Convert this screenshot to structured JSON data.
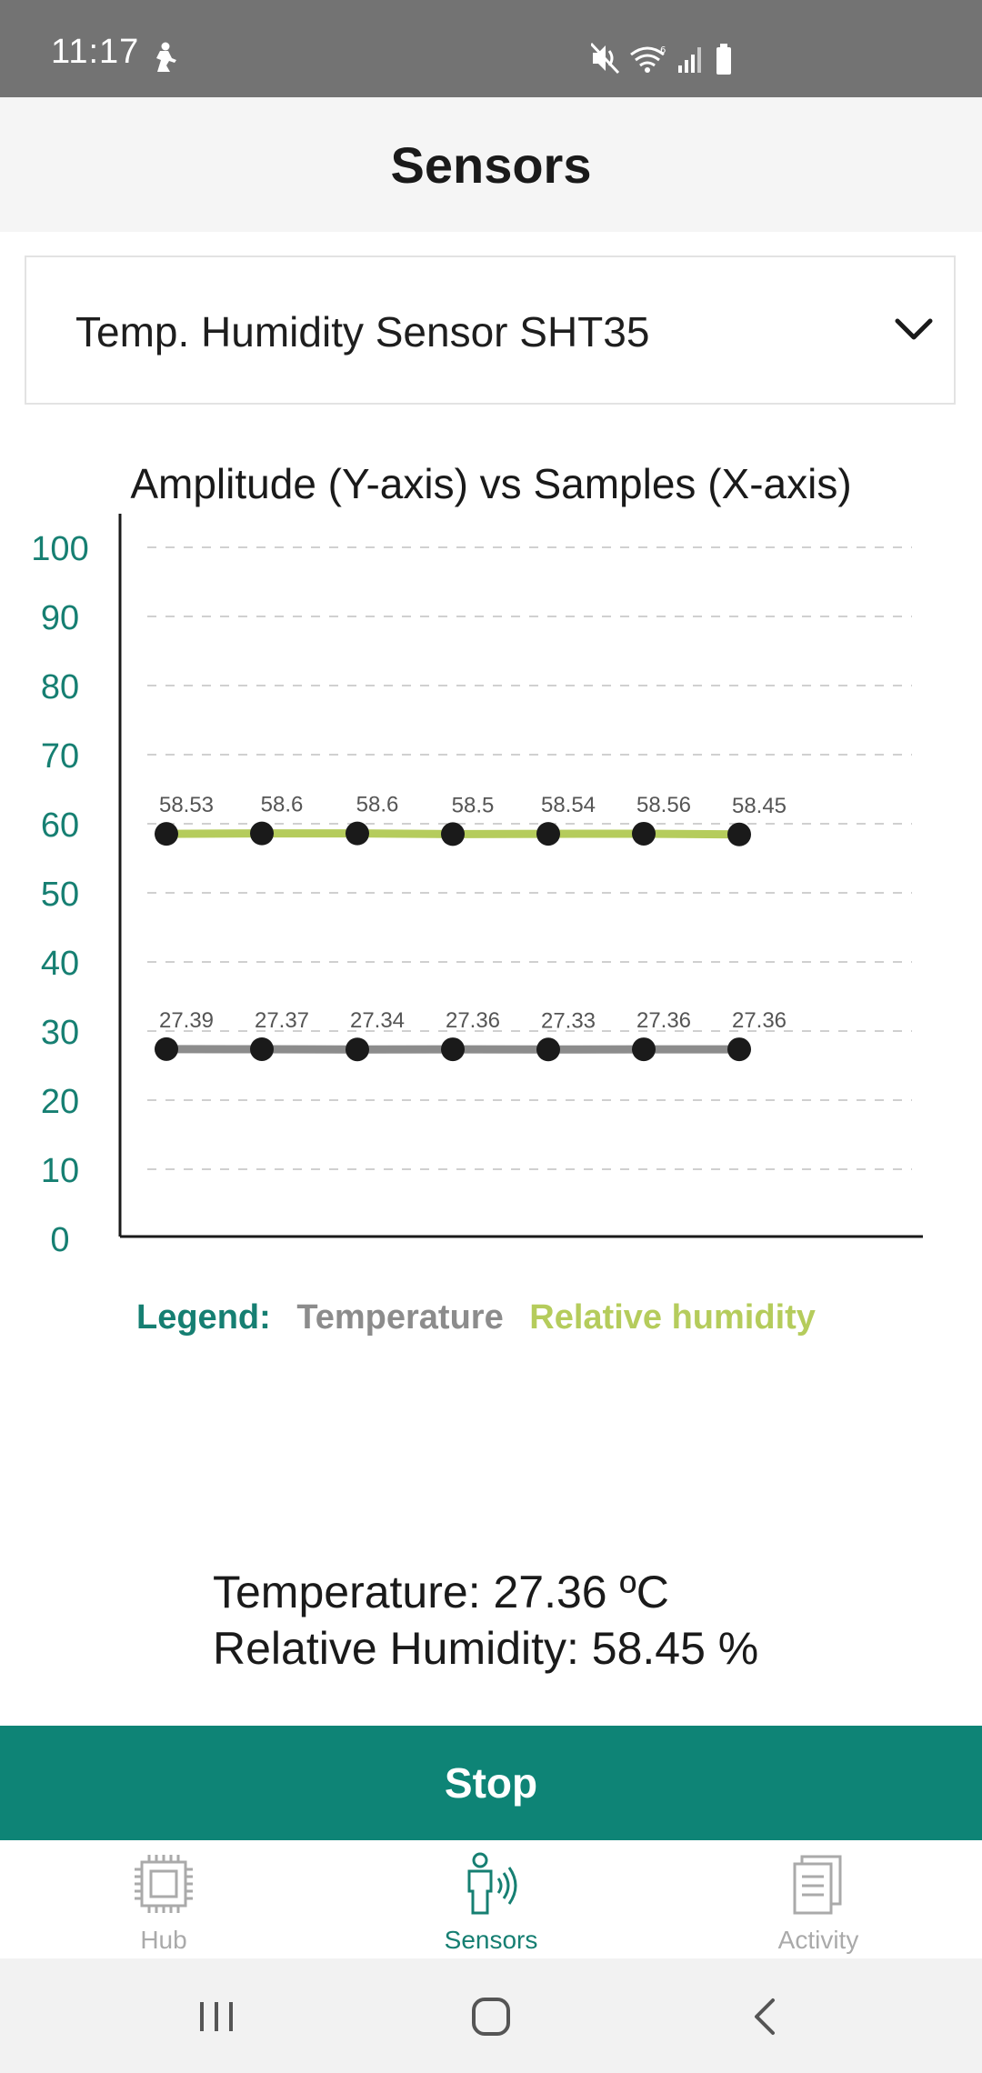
{
  "status_bar": {
    "time": "11:17"
  },
  "header": {
    "title": "Sensors"
  },
  "selector": {
    "value": "Temp. Humidity Sensor SHT35"
  },
  "chart_data": {
    "type": "line",
    "title": "Amplitude (Y-axis) vs Samples (X-axis)",
    "ylim": [
      0,
      100
    ],
    "y_ticks": [
      100,
      90,
      80,
      70,
      60,
      50,
      40,
      30,
      20,
      10,
      0
    ],
    "grid": true,
    "x": [
      1,
      2,
      3,
      4,
      5,
      6,
      7
    ],
    "series": [
      {
        "name": "Relative humidity",
        "color": "#b5cc5c",
        "values": [
          58.53,
          58.6,
          58.6,
          58.5,
          58.54,
          58.56,
          58.45
        ]
      },
      {
        "name": "Temperature",
        "color": "#8c8c8c",
        "values": [
          27.39,
          27.37,
          27.34,
          27.36,
          27.33,
          27.36,
          27.36
        ]
      }
    ]
  },
  "legend": {
    "label": "Legend:",
    "temperature": "Temperature",
    "humidity": "Relative humidity",
    "label_color": "#167f72"
  },
  "readings": {
    "temperature": "Temperature: 27.36 ºC",
    "humidity": "Relative Humidity: 58.45 %"
  },
  "actions": {
    "stop_label": "Stop"
  },
  "bottom_nav": {
    "items": [
      {
        "label": "Hub",
        "icon": "chip-icon",
        "active": false
      },
      {
        "label": "Sensors",
        "icon": "person-signal-icon",
        "active": true
      },
      {
        "label": "Activity",
        "icon": "document-icon",
        "active": false
      }
    ],
    "active_color": "#167f72",
    "inactive_color": "#aaaaaa"
  },
  "system_nav": {
    "icons": [
      "recent-apps-icon",
      "home-icon",
      "back-icon"
    ]
  }
}
